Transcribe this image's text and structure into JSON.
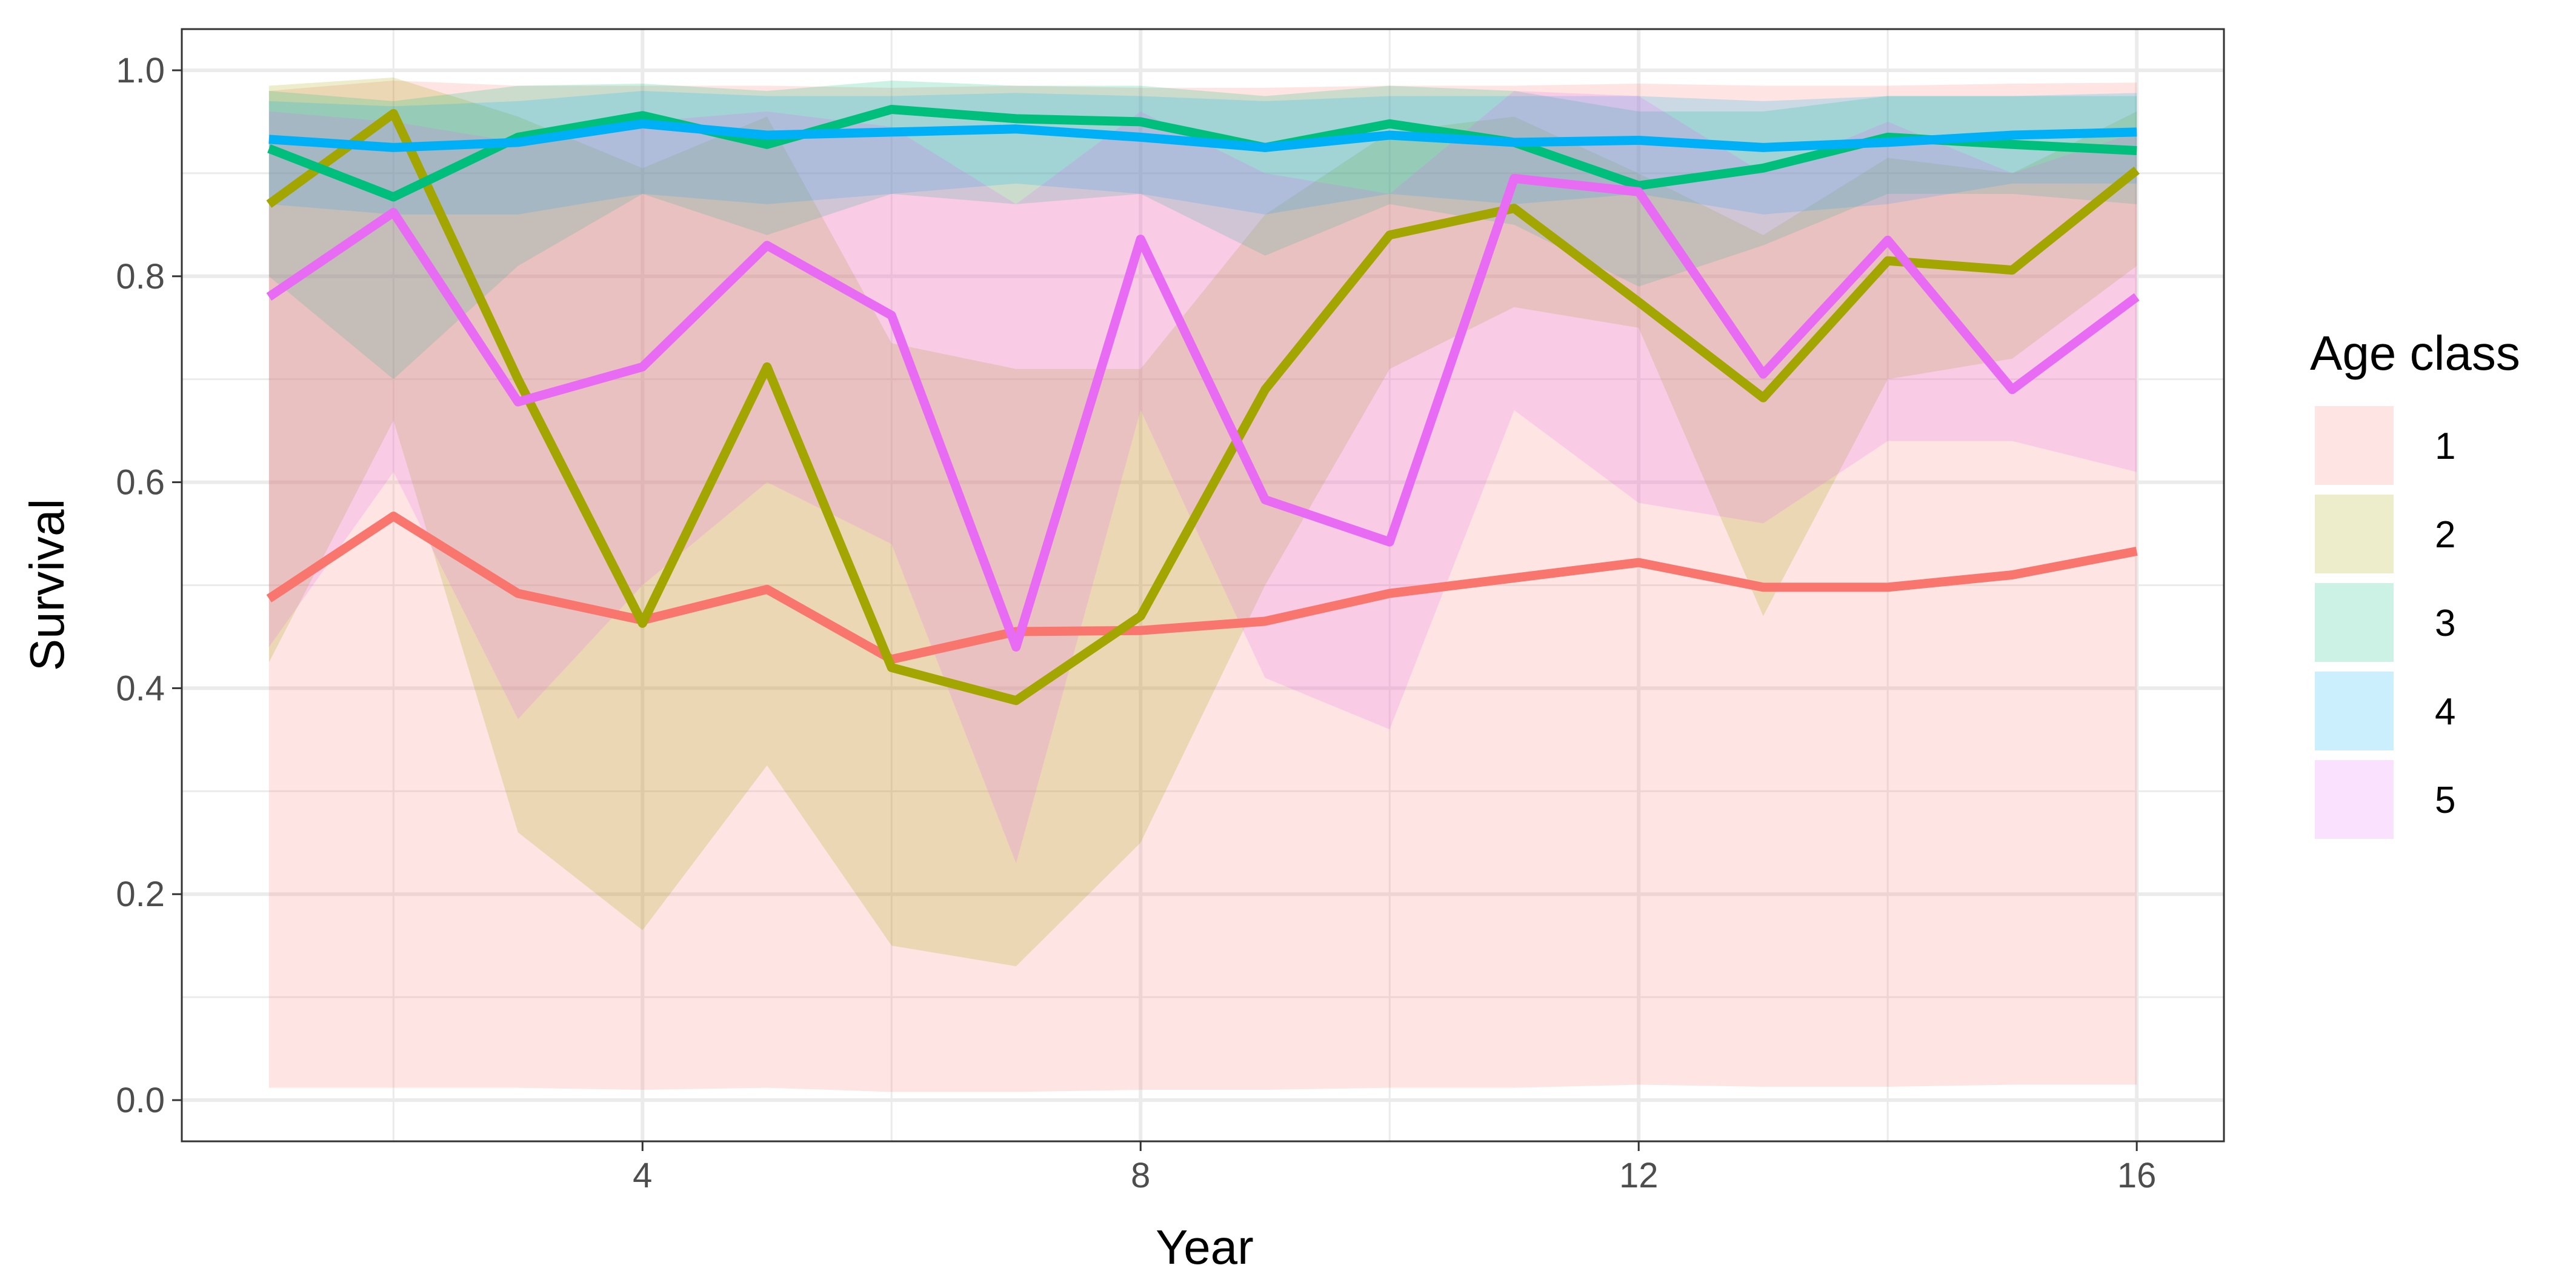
{
  "chart_data": {
    "type": "line",
    "title": "",
    "xlabel": "Year",
    "ylabel": "Survival",
    "xlim": [
      0.3,
      16.7
    ],
    "ylim": [
      -0.04,
      1.04
    ],
    "x_ticks": [
      4,
      8,
      12,
      16
    ],
    "x_tick_labels": [
      "4",
      "8",
      "12",
      "16"
    ],
    "y_ticks": [
      0.0,
      0.2,
      0.4,
      0.6,
      0.8,
      1.0
    ],
    "y_tick_labels": [
      "0.0",
      "0.2",
      "0.4",
      "0.6",
      "0.8",
      "1.0"
    ],
    "grid": true,
    "legend": {
      "title": "Age class",
      "position": "right"
    },
    "x": [
      1,
      2,
      3,
      4,
      5,
      6,
      7,
      8,
      9,
      10,
      11,
      12,
      13,
      14,
      15,
      16
    ],
    "series": [
      {
        "name": "1",
        "color": "#F8766D",
        "values": [
          0.487,
          0.567,
          0.492,
          0.466,
          0.496,
          0.428,
          0.455,
          0.456,
          0.465,
          0.492,
          0.507,
          0.522,
          0.498,
          0.498,
          0.51,
          0.533
        ],
        "lower": [
          0.012,
          0.012,
          0.012,
          0.01,
          0.012,
          0.008,
          0.008,
          0.01,
          0.01,
          0.012,
          0.012,
          0.015,
          0.013,
          0.013,
          0.015,
          0.015
        ],
        "upper": [
          0.98,
          0.99,
          0.985,
          0.985,
          0.985,
          0.983,
          0.985,
          0.983,
          0.983,
          0.985,
          0.985,
          0.987,
          0.985,
          0.985,
          0.987,
          0.988
        ]
      },
      {
        "name": "2",
        "color": "#A3A500",
        "values": [
          0.87,
          0.958,
          0.7,
          0.463,
          0.712,
          0.42,
          0.388,
          0.47,
          0.69,
          0.84,
          0.866,
          0.775,
          0.682,
          0.815,
          0.806,
          0.903
        ],
        "lower": [
          0.425,
          0.66,
          0.26,
          0.165,
          0.325,
          0.15,
          0.13,
          0.25,
          0.5,
          0.71,
          0.77,
          0.75,
          0.47,
          0.7,
          0.72,
          0.81
        ],
        "upper": [
          0.985,
          0.993,
          0.955,
          0.905,
          0.955,
          0.735,
          0.71,
          0.71,
          0.86,
          0.94,
          0.955,
          0.9,
          0.84,
          0.915,
          0.9,
          0.96
        ]
      },
      {
        "name": "3",
        "color": "#00BF7D",
        "values": [
          0.924,
          0.877,
          0.935,
          0.956,
          0.928,
          0.962,
          0.953,
          0.95,
          0.925,
          0.948,
          0.93,
          0.888,
          0.905,
          0.935,
          0.928,
          0.922
        ],
        "lower": [
          0.8,
          0.7,
          0.81,
          0.88,
          0.84,
          0.88,
          0.87,
          0.88,
          0.82,
          0.87,
          0.85,
          0.79,
          0.83,
          0.88,
          0.88,
          0.87
        ],
        "upper": [
          0.98,
          0.97,
          0.985,
          0.987,
          0.98,
          0.99,
          0.985,
          0.985,
          0.975,
          0.985,
          0.98,
          0.96,
          0.96,
          0.975,
          0.975,
          0.975
        ]
      },
      {
        "name": "4",
        "color": "#00B0F6",
        "values": [
          0.933,
          0.925,
          0.93,
          0.948,
          0.937,
          0.94,
          0.943,
          0.935,
          0.925,
          0.937,
          0.93,
          0.932,
          0.925,
          0.93,
          0.937,
          0.94
        ],
        "lower": [
          0.87,
          0.86,
          0.86,
          0.88,
          0.87,
          0.88,
          0.89,
          0.88,
          0.86,
          0.88,
          0.87,
          0.88,
          0.86,
          0.87,
          0.89,
          0.89
        ],
        "upper": [
          0.97,
          0.965,
          0.97,
          0.98,
          0.975,
          0.975,
          0.978,
          0.975,
          0.97,
          0.975,
          0.975,
          0.975,
          0.97,
          0.975,
          0.975,
          0.978
        ]
      },
      {
        "name": "5",
        "color": "#E76BF3",
        "values": [
          0.78,
          0.862,
          0.678,
          0.712,
          0.83,
          0.762,
          0.44,
          0.836,
          0.583,
          0.542,
          0.895,
          0.882,
          0.705,
          0.835,
          0.69,
          0.78
        ],
        "lower": [
          0.44,
          0.61,
          0.37,
          0.5,
          0.6,
          0.54,
          0.23,
          0.67,
          0.41,
          0.36,
          0.67,
          0.58,
          0.56,
          0.64,
          0.64,
          0.61
        ],
        "upper": [
          0.96,
          0.95,
          0.93,
          0.95,
          0.96,
          0.945,
          0.87,
          0.96,
          0.9,
          0.88,
          0.98,
          0.975,
          0.9,
          0.95,
          0.9,
          0.94
        ]
      }
    ]
  }
}
